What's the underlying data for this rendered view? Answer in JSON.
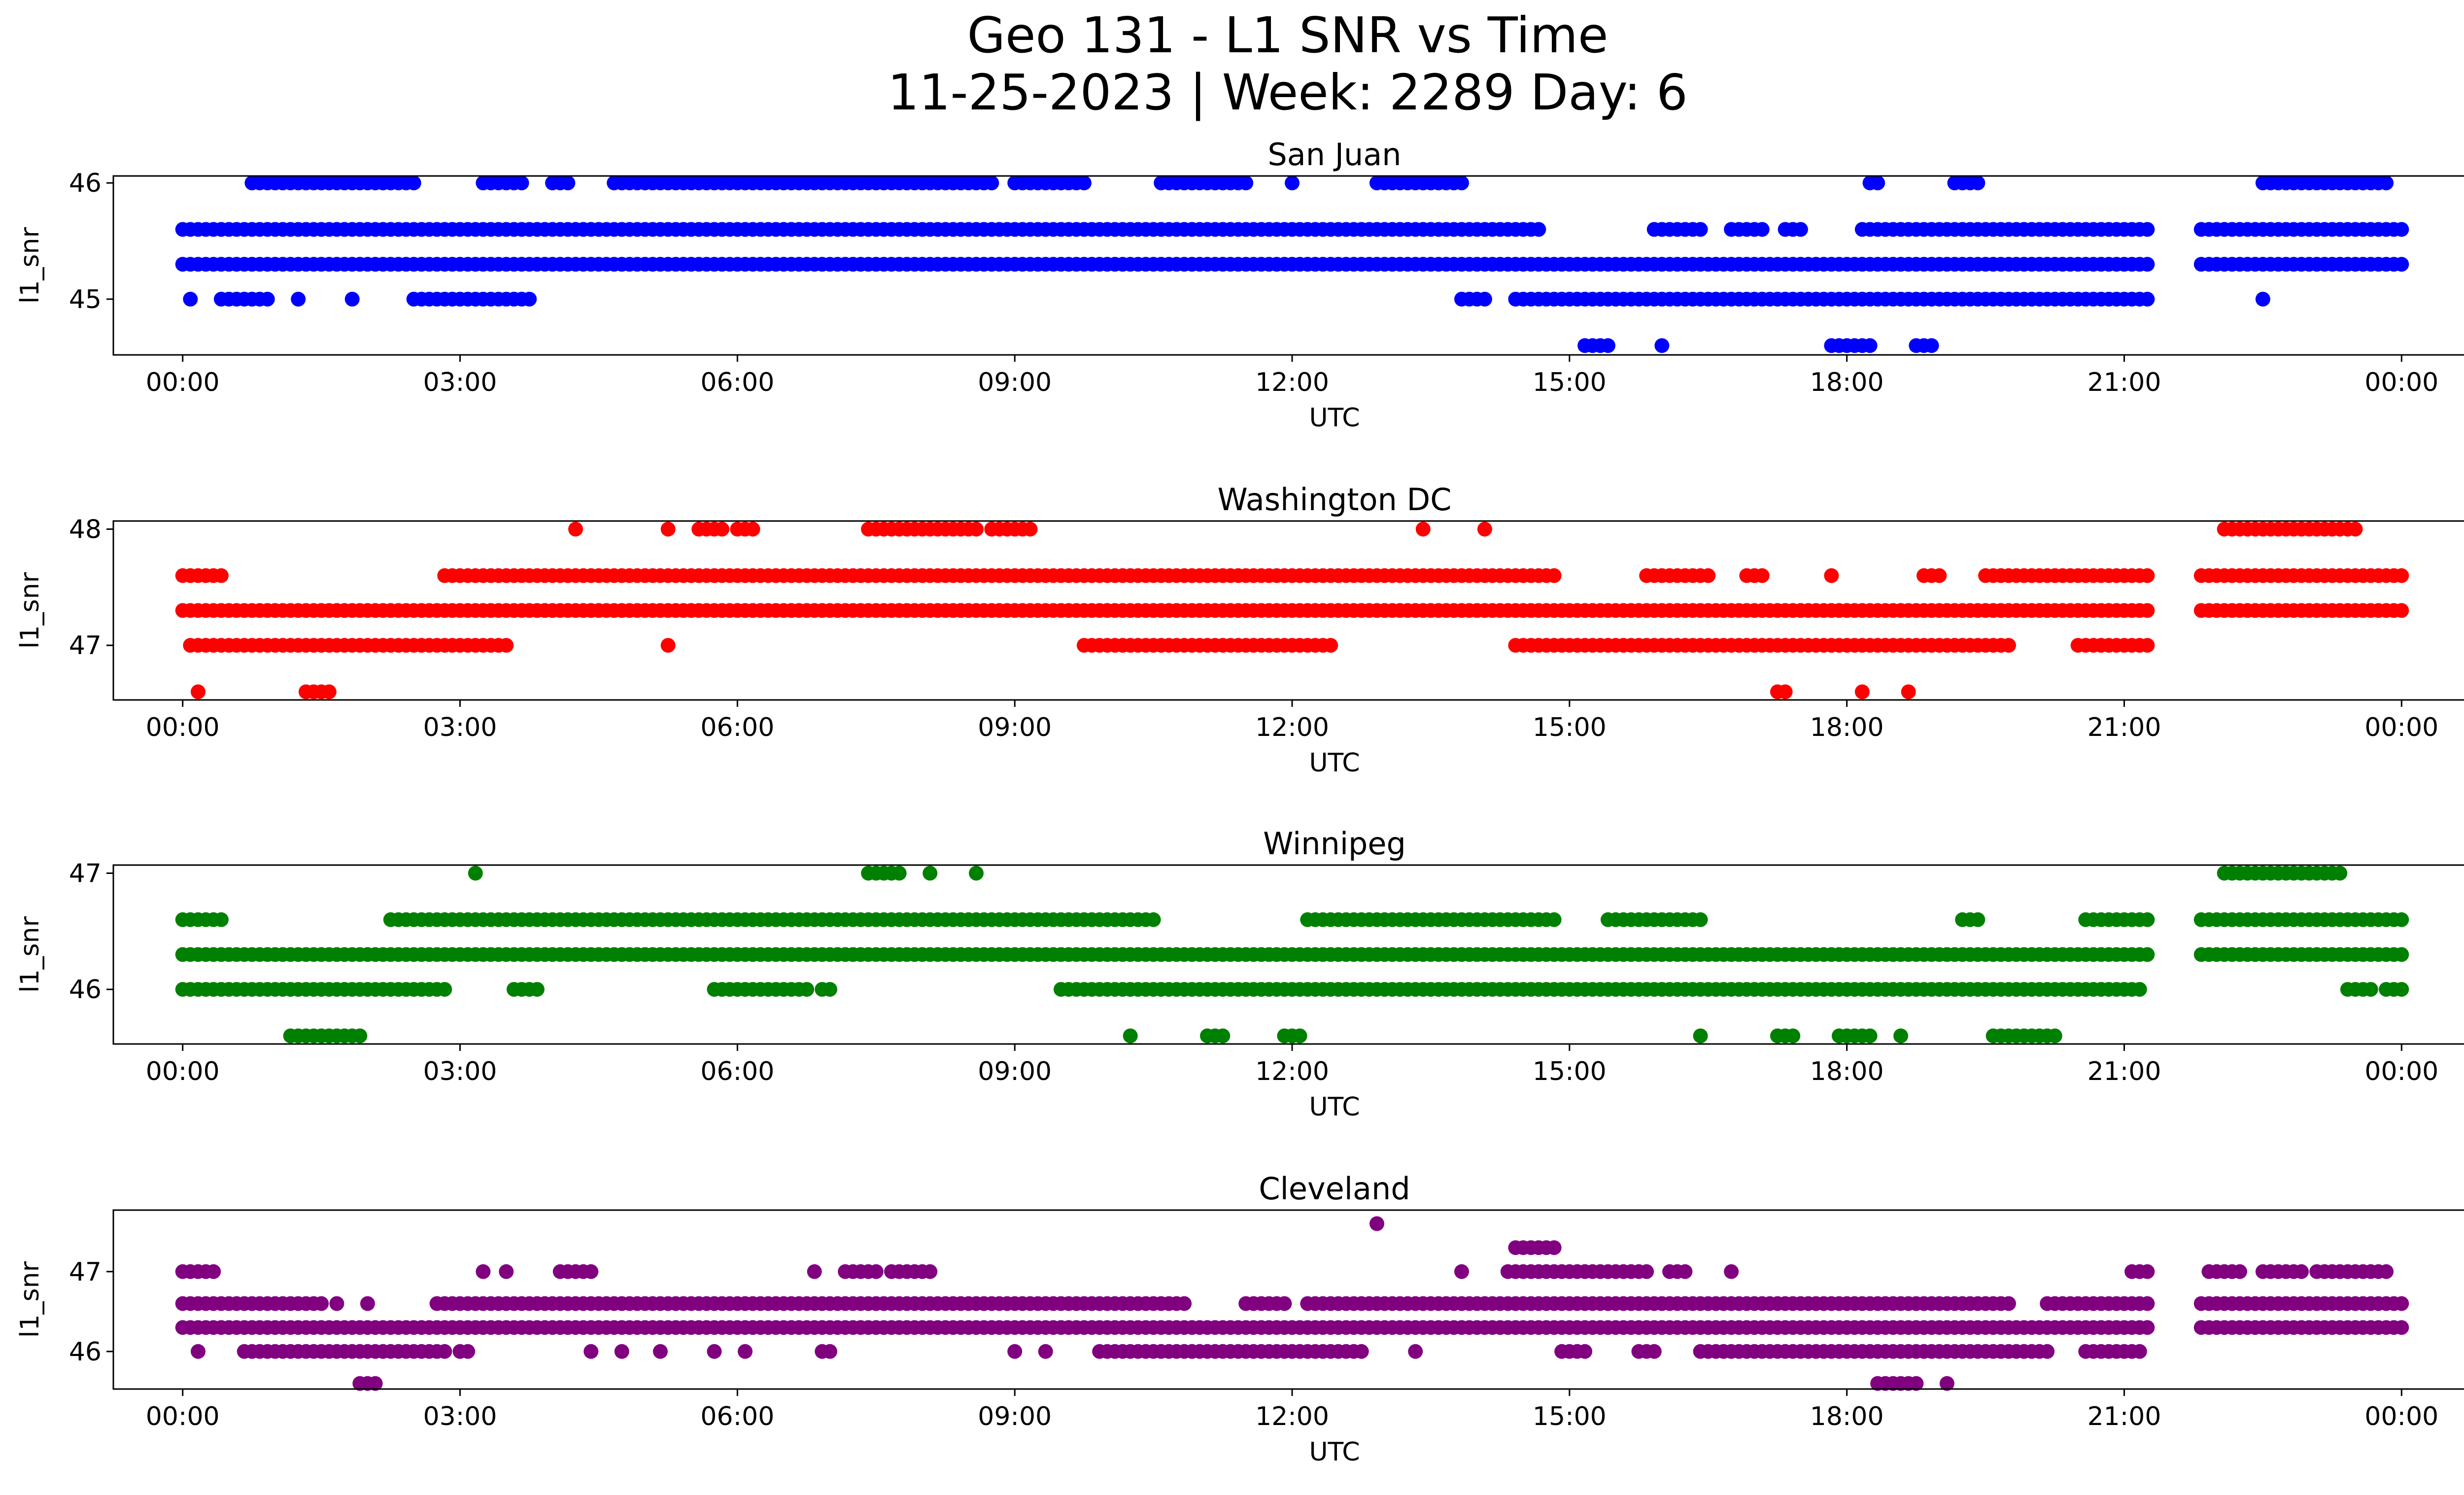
{
  "figure": {
    "title_line1": "Geo 131 - L1 SNR vs Time",
    "title_line2": "11-25-2023 | Week: 2289 Day: 6"
  },
  "chart_data": [
    {
      "type": "scatter",
      "title": "San Juan",
      "xlabel": "UTC",
      "ylabel": "l1_snr",
      "color": "#0000ff",
      "xlim": [
        "2023-11-24 23:15",
        "2023-11-26 01:40"
      ],
      "ylim": [
        44.52,
        46.06
      ],
      "yticks": [
        45,
        46
      ],
      "xticklabels": [
        "00:00",
        "03:00",
        "06:00",
        "09:00",
        "12:00",
        "15:00",
        "18:00",
        "21:00",
        "00:00"
      ],
      "series": [
        {
          "segments": [
            {
              "y": 45.6,
              "ranges": [
                [
                  "00:00",
                  "14:40"
                ],
                [
                  "15:55",
                  "16:25"
                ],
                [
                  "16:45",
                  "17:05"
                ],
                [
                  "17:20",
                  "17:30"
                ],
                [
                  "18:10",
                  "21:15"
                ],
                [
                  "21:50",
                  "24:00"
                ]
              ]
            },
            {
              "y": 45.3,
              "ranges": [
                [
                  "00:00",
                  "21:15"
                ],
                [
                  "21:50",
                  "24:00"
                ]
              ]
            },
            {
              "y": 45.0,
              "ranges": [
                [
                  "00:05",
                  "00:05"
                ],
                [
                  "00:25",
                  "00:55"
                ],
                [
                  "01:15",
                  "01:15"
                ],
                [
                  "01:50",
                  "01:50"
                ],
                [
                  "02:30",
                  "03:45"
                ],
                [
                  "13:50",
                  "14:05"
                ],
                [
                  "14:25",
                  "21:15"
                ],
                [
                  "22:30",
                  "22:30"
                ]
              ]
            },
            {
              "y": 46.0,
              "ranges": [
                [
                  "00:45",
                  "02:30"
                ],
                [
                  "03:15",
                  "03:40"
                ],
                [
                  "04:00",
                  "04:10"
                ],
                [
                  "04:40",
                  "08:45"
                ],
                [
                  "09:00",
                  "09:45"
                ],
                [
                  "10:35",
                  "11:30"
                ],
                [
                  "12:00",
                  "12:00"
                ],
                [
                  "12:55",
                  "13:50"
                ],
                [
                  "18:15",
                  "18:20"
                ],
                [
                  "19:10",
                  "19:25"
                ],
                [
                  "22:30",
                  "23:50"
                ]
              ]
            },
            {
              "y": 44.6,
              "ranges": [
                [
                  "15:10",
                  "15:25"
                ],
                [
                  "16:00",
                  "16:00"
                ],
                [
                  "17:50",
                  "18:15"
                ],
                [
                  "18:45",
                  "18:55"
                ]
              ]
            }
          ]
        }
      ]
    },
    {
      "type": "scatter",
      "title": "Washington DC",
      "xlabel": "UTC",
      "ylabel": "l1_snr",
      "color": "#ff0000",
      "xlim": [
        "2023-11-24 23:15",
        "2023-11-26 01:40"
      ],
      "ylim": [
        46.53,
        48.07
      ],
      "yticks": [
        47,
        48
      ],
      "xticklabels": [
        "00:00",
        "03:00",
        "06:00",
        "09:00",
        "12:00",
        "15:00",
        "18:00",
        "21:00",
        "00:00"
      ],
      "series": [
        {
          "segments": [
            {
              "y": 47.6,
              "ranges": [
                [
                  "00:00",
                  "00:25"
                ],
                [
                  "02:50",
                  "14:50"
                ],
                [
                  "15:50",
                  "16:30"
                ],
                [
                  "16:55",
                  "17:05"
                ],
                [
                  "17:50",
                  "17:50"
                ],
                [
                  "18:50",
                  "19:00"
                ],
                [
                  "19:30",
                  "21:15"
                ],
                [
                  "21:50",
                  "24:00"
                ]
              ]
            },
            {
              "y": 47.3,
              "ranges": [
                [
                  "00:00",
                  "21:15"
                ],
                [
                  "21:50",
                  "24:00"
                ]
              ]
            },
            {
              "y": 47.0,
              "ranges": [
                [
                  "00:05",
                  "03:30"
                ],
                [
                  "05:15",
                  "05:15"
                ],
                [
                  "09:45",
                  "12:25"
                ],
                [
                  "14:25",
                  "19:45"
                ],
                [
                  "20:30",
                  "21:15"
                ]
              ]
            },
            {
              "y": 48.0,
              "ranges": [
                [
                  "04:15",
                  "04:15"
                ],
                [
                  "05:15",
                  "05:15"
                ],
                [
                  "05:35",
                  "05:50"
                ],
                [
                  "06:00",
                  "06:10"
                ],
                [
                  "07:25",
                  "08:35"
                ],
                [
                  "08:45",
                  "09:10"
                ],
                [
                  "13:25",
                  "13:25"
                ],
                [
                  "14:05",
                  "14:05"
                ],
                [
                  "22:05",
                  "23:30"
                ]
              ]
            },
            {
              "y": 46.6,
              "ranges": [
                [
                  "00:10",
                  "00:10"
                ],
                [
                  "01:20",
                  "01:35"
                ],
                [
                  "17:15",
                  "17:20"
                ],
                [
                  "18:10",
                  "18:10"
                ],
                [
                  "18:40",
                  "18:40"
                ]
              ]
            }
          ]
        }
      ]
    },
    {
      "type": "scatter",
      "title": "Winnipeg",
      "xlabel": "UTC",
      "ylabel": "l1_snr",
      "color": "#008000",
      "xlim": [
        "2023-11-24 23:15",
        "2023-11-26 01:40"
      ],
      "ylim": [
        45.53,
        47.07
      ],
      "yticks": [
        46,
        47
      ],
      "xticklabels": [
        "00:00",
        "03:00",
        "06:00",
        "09:00",
        "12:00",
        "15:00",
        "18:00",
        "21:00",
        "00:00"
      ],
      "series": [
        {
          "segments": [
            {
              "y": 46.6,
              "ranges": [
                [
                  "00:00",
                  "00:25"
                ],
                [
                  "02:15",
                  "10:30"
                ],
                [
                  "12:10",
                  "14:50"
                ],
                [
                  "15:25",
                  "16:25"
                ],
                [
                  "19:15",
                  "19:25"
                ],
                [
                  "20:35",
                  "21:15"
                ],
                [
                  "21:50",
                  "24:00"
                ]
              ]
            },
            {
              "y": 46.3,
              "ranges": [
                [
                  "00:00",
                  "21:15"
                ],
                [
                  "21:50",
                  "24:00"
                ]
              ]
            },
            {
              "y": 46.0,
              "ranges": [
                [
                  "00:00",
                  "02:50"
                ],
                [
                  "03:35",
                  "03:50"
                ],
                [
                  "05:45",
                  "06:45"
                ],
                [
                  "06:55",
                  "07:00"
                ],
                [
                  "09:30",
                  "21:10"
                ],
                [
                  "23:25",
                  "23:40"
                ],
                [
                  "23:50",
                  "24:00"
                ]
              ]
            },
            {
              "y": 47.0,
              "ranges": [
                [
                  "03:10",
                  "03:10"
                ],
                [
                  "07:25",
                  "07:45"
                ],
                [
                  "08:05",
                  "08:05"
                ],
                [
                  "08:35",
                  "08:35"
                ],
                [
                  "22:05",
                  "23:20"
                ]
              ]
            },
            {
              "y": 45.6,
              "ranges": [
                [
                  "01:10",
                  "01:55"
                ],
                [
                  "10:15",
                  "10:15"
                ],
                [
                  "11:05",
                  "11:15"
                ],
                [
                  "11:55",
                  "12:05"
                ],
                [
                  "16:25",
                  "16:25"
                ],
                [
                  "17:15",
                  "17:25"
                ],
                [
                  "17:55",
                  "18:15"
                ],
                [
                  "18:35",
                  "18:35"
                ],
                [
                  "19:35",
                  "20:15"
                ]
              ]
            }
          ]
        }
      ]
    },
    {
      "type": "scatter",
      "title": "Cleveland",
      "xlabel": "UTC",
      "ylabel": "l1_snr",
      "color": "#800080",
      "xlim": [
        "2023-11-24 23:15",
        "2023-11-26 01:40"
      ],
      "ylim": [
        45.53,
        47.77
      ],
      "yticks": [
        46,
        47
      ],
      "xticklabels": [
        "00:00",
        "03:00",
        "06:00",
        "09:00",
        "12:00",
        "15:00",
        "18:00",
        "21:00",
        "00:00"
      ],
      "series": [
        {
          "segments": [
            {
              "y": 46.6,
              "ranges": [
                [
                  "00:00",
                  "01:30"
                ],
                [
                  "01:40",
                  "01:40"
                ],
                [
                  "02:00",
                  "02:00"
                ],
                [
                  "02:45",
                  "10:50"
                ],
                [
                  "11:30",
                  "11:55"
                ],
                [
                  "12:10",
                  "19:45"
                ],
                [
                  "20:10",
                  "21:15"
                ],
                [
                  "21:50",
                  "24:00"
                ]
              ]
            },
            {
              "y": 46.3,
              "ranges": [
                [
                  "00:00",
                  "21:15"
                ],
                [
                  "21:50",
                  "24:00"
                ]
              ]
            },
            {
              "y": 46.0,
              "ranges": [
                [
                  "00:10",
                  "00:10"
                ],
                [
                  "00:40",
                  "02:50"
                ],
                [
                  "03:00",
                  "03:05"
                ],
                [
                  "04:25",
                  "04:25"
                ],
                [
                  "04:45",
                  "04:45"
                ],
                [
                  "05:10",
                  "05:10"
                ],
                [
                  "05:45",
                  "05:45"
                ],
                [
                  "06:05",
                  "06:05"
                ],
                [
                  "06:55",
                  "07:00"
                ],
                [
                  "09:00",
                  "09:00"
                ],
                [
                  "09:20",
                  "09:20"
                ],
                [
                  "09:55",
                  "12:45"
                ],
                [
                  "13:20",
                  "13:20"
                ],
                [
                  "14:55",
                  "15:10"
                ],
                [
                  "15:45",
                  "15:55"
                ],
                [
                  "16:25",
                  "20:10"
                ],
                [
                  "20:35",
                  "21:10"
                ]
              ]
            },
            {
              "y": 47.0,
              "ranges": [
                [
                  "00:00",
                  "00:20"
                ],
                [
                  "03:15",
                  "03:15"
                ],
                [
                  "03:30",
                  "03:30"
                ],
                [
                  "04:05",
                  "04:25"
                ],
                [
                  "06:50",
                  "06:50"
                ],
                [
                  "07:10",
                  "07:30"
                ],
                [
                  "07:40",
                  "08:05"
                ],
                [
                  "13:50",
                  "13:50"
                ],
                [
                  "14:20",
                  "15:50"
                ],
                [
                  "16:05",
                  "16:15"
                ],
                [
                  "16:45",
                  "16:45"
                ],
                [
                  "21:05",
                  "21:15"
                ],
                [
                  "21:55",
                  "22:15"
                ],
                [
                  "22:30",
                  "22:55"
                ],
                [
                  "23:05",
                  "23:50"
                ]
              ]
            },
            {
              "y": 47.3,
              "ranges": [
                [
                  "14:25",
                  "14:50"
                ]
              ]
            },
            {
              "y": 47.6,
              "ranges": [
                [
                  "12:55",
                  "12:55"
                ]
              ]
            },
            {
              "y": 45.6,
              "ranges": [
                [
                  "01:55",
                  "02:05"
                ],
                [
                  "18:20",
                  "18:45"
                ],
                [
                  "19:05",
                  "19:05"
                ]
              ]
            }
          ]
        }
      ]
    }
  ]
}
